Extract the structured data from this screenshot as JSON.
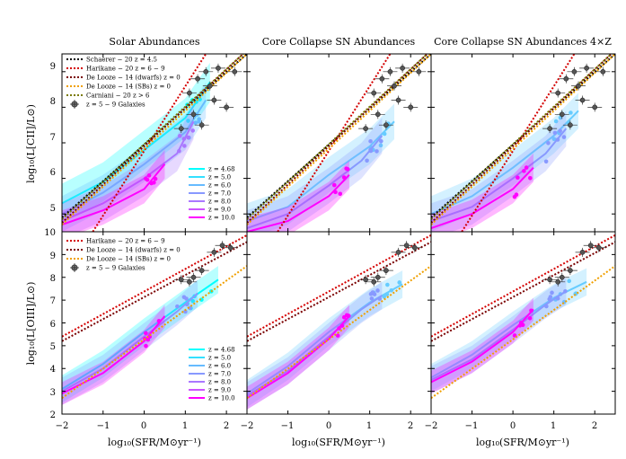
{
  "figure": {
    "column_titles": [
      "Solar Abundances",
      "Core Collapse SN Abundances",
      "Core Collapse SN Abundances 4×Z"
    ],
    "xlabel": "log₁₀(SFR/M⊙yr⁻¹)",
    "row_ylabels": [
      "log₁₀(L[CII]/L⊙)",
      "log₁₀(L[OIII]/L⊙)"
    ],
    "x_ticks": [
      "−2",
      "−1",
      "0",
      "1",
      "2"
    ],
    "top_y_ticks": [
      "5",
      "6",
      "7",
      "8",
      "9"
    ],
    "bottom_y_ticks": [
      "2",
      "3",
      "4",
      "5",
      "6",
      "7",
      "8",
      "9",
      "10"
    ]
  },
  "legend_top": [
    {
      "label": "Schaerer − 20 z = 4.5",
      "color": "#000000"
    },
    {
      "label": "Harikane − 20 z = 6 − 9",
      "color": "#d40000"
    },
    {
      "label": "De Looze − 14 (dwarfs) z = 0",
      "color": "#7a0000"
    },
    {
      "label": "De Looze − 14 (SBs) z = 0",
      "color": "#f0a000"
    },
    {
      "label": "Carniani − 20 z > 6",
      "color": "#7a7a00"
    },
    {
      "label": "z = 5 − 9 Galaxies",
      "color": "#555555"
    }
  ],
  "legend_bottom": [
    {
      "label": "Harikane − 20 z = 6 − 9",
      "color": "#d40000"
    },
    {
      "label": "De Looze − 14 (dwarfs) z = 0",
      "color": "#7a0000"
    },
    {
      "label": "De Looze − 14 (SBs) z = 0",
      "color": "#f0a000"
    },
    {
      "label": "z = 5 − 9 Galaxies",
      "color": "#555555"
    }
  ],
  "legend_redshift": [
    {
      "label": "z = 4.68",
      "color": "#00ffff"
    },
    {
      "label": "z = 5.0",
      "color": "#33e0ff"
    },
    {
      "label": "z = 6.0",
      "color": "#66bbff"
    },
    {
      "label": "z = 7.0",
      "color": "#8899ff"
    },
    {
      "label": "z = 8.0",
      "color": "#aa77ff"
    },
    {
      "label": "z = 9.0",
      "color": "#cc55ff"
    },
    {
      "label": "z = 10.0",
      "color": "#ff00ff"
    }
  ],
  "chart_data": [
    {
      "type": "line",
      "panel": "top-left",
      "xlim": [
        -2,
        2.5
      ],
      "ylim": [
        4.5,
        9.5
      ],
      "relations": [
        {
          "name": "Schaerer − 20 z = 4.5",
          "color": "#000000",
          "x": [
            -2,
            2.5
          ],
          "y": [
            4.9,
            9.5
          ]
        },
        {
          "name": "Harikane − 20 z = 6 − 9",
          "color": "#d40000",
          "x": [
            -1.25,
            1.5
          ],
          "y": [
            4.5,
            9.5
          ]
        },
        {
          "name": "De Looze − 14 (dwarfs) z = 0",
          "color": "#7a0000",
          "x": [
            -2,
            2.5
          ],
          "y": [
            4.75,
            9.6
          ]
        },
        {
          "name": "De Looze − 14 (SBs) z = 0",
          "color": "#f0a000",
          "x": [
            -2,
            2.5
          ],
          "y": [
            4.7,
            9.5
          ]
        },
        {
          "name": "Carniani − 20 z > 6",
          "color": "#7a7a00",
          "x": [
            -2,
            2.5
          ],
          "y": [
            4.85,
            9.6
          ]
        }
      ],
      "simulation": [
        {
          "z": "4.68",
          "color": "#00ffff",
          "x": [
            -2,
            -1,
            0,
            1,
            1.6
          ],
          "y": [
            5.3,
            5.9,
            6.8,
            7.7,
            8.7
          ],
          "spread": 0.55
        },
        {
          "z": "6.0",
          "color": "#66bbff",
          "x": [
            -2,
            -1,
            0,
            1,
            1.5
          ],
          "y": [
            5.0,
            5.6,
            6.4,
            7.3,
            8.2
          ],
          "spread": 0.5
        },
        {
          "z": "8.0",
          "color": "#aa77ff",
          "x": [
            -2,
            -1,
            0,
            0.8,
            1.2
          ],
          "y": [
            4.8,
            5.3,
            6.0,
            6.7,
            7.6
          ],
          "spread": 0.5
        },
        {
          "z": "10.0",
          "color": "#ff00ff",
          "x": [
            -2,
            -1,
            0,
            0.5
          ],
          "y": [
            4.7,
            5.1,
            5.7,
            6.4
          ],
          "spread": 0.4
        }
      ]
    },
    {
      "type": "line",
      "panel": "top-middle",
      "xlim": [
        -2,
        2.5
      ],
      "ylim": [
        4.5,
        9.5
      ],
      "relations": [
        {
          "name": "Schaerer − 20 z = 4.5",
          "color": "#000000",
          "x": [
            -2,
            2.5
          ],
          "y": [
            4.9,
            9.5
          ]
        },
        {
          "name": "Harikane − 20 z = 6 − 9",
          "color": "#d40000",
          "x": [
            -1.25,
            1.5
          ],
          "y": [
            4.5,
            9.5
          ]
        },
        {
          "name": "De Looze − 14 (dwarfs) z = 0",
          "color": "#7a0000",
          "x": [
            -2,
            2.5
          ],
          "y": [
            4.75,
            9.6
          ]
        },
        {
          "name": "De Looze − 14 (SBs) z = 0",
          "color": "#f0a000",
          "x": [
            -2,
            2.5
          ],
          "y": [
            4.7,
            9.5
          ]
        },
        {
          "name": "Carniani − 20 z > 6",
          "color": "#7a7a00",
          "x": [
            -2,
            2.5
          ],
          "y": [
            4.85,
            9.6
          ]
        }
      ],
      "simulation": [
        {
          "z": "4.68",
          "color": "#66ccff",
          "x": [
            -2,
            -1,
            0,
            1,
            1.6
          ],
          "y": [
            4.8,
            5.2,
            6.1,
            6.9,
            7.6
          ],
          "spread": 0.5
        },
        {
          "z": "7.0",
          "color": "#8899ff",
          "x": [
            -2,
            -1,
            0,
            0.8,
            1.3
          ],
          "y": [
            4.6,
            5.0,
            5.8,
            6.5,
            7.2
          ],
          "spread": 0.5
        },
        {
          "z": "10.0",
          "color": "#ff00ff",
          "x": [
            -2,
            -1,
            0,
            0.5
          ],
          "y": [
            4.5,
            4.8,
            5.5,
            6.1
          ],
          "spread": 0.4
        }
      ]
    },
    {
      "type": "line",
      "panel": "top-right",
      "xlim": [
        -2,
        2.5
      ],
      "ylim": [
        4.5,
        9.5
      ],
      "relations": [
        {
          "name": "Schaerer − 20 z = 4.5",
          "color": "#000000",
          "x": [
            -2,
            2.5
          ],
          "y": [
            4.9,
            9.5
          ]
        },
        {
          "name": "Harikane − 20 z = 6 − 9",
          "color": "#d40000",
          "x": [
            -1.25,
            1.5
          ],
          "y": [
            4.5,
            9.5
          ]
        },
        {
          "name": "De Looze − 14 (dwarfs) z = 0",
          "color": "#7a0000",
          "x": [
            -2,
            2.5
          ],
          "y": [
            4.75,
            9.6
          ]
        },
        {
          "name": "De Looze − 14 (SBs) z = 0",
          "color": "#f0a000",
          "x": [
            -2,
            2.5
          ],
          "y": [
            4.7,
            9.5
          ]
        },
        {
          "name": "Carniani − 20 z > 6",
          "color": "#7a7a00",
          "x": [
            -2,
            2.5
          ],
          "y": [
            4.85,
            9.6
          ]
        }
      ],
      "simulation": [
        {
          "z": "4.68",
          "color": "#66ccff",
          "x": [
            -2,
            -1,
            0,
            1,
            1.6
          ],
          "y": [
            5.0,
            5.5,
            6.3,
            7.2,
            7.9
          ],
          "spread": 0.5
        },
        {
          "z": "7.0",
          "color": "#8899ff",
          "x": [
            -2,
            -1,
            0,
            0.8,
            1.3
          ],
          "y": [
            4.8,
            5.2,
            6.0,
            6.7,
            7.4
          ],
          "spread": 0.5
        },
        {
          "z": "10.0",
          "color": "#ff00ff",
          "x": [
            -2,
            -1,
            0,
            0.5
          ],
          "y": [
            4.6,
            5.0,
            5.7,
            6.3
          ],
          "spread": 0.4
        }
      ]
    },
    {
      "type": "line",
      "panel": "bottom-left",
      "xlim": [
        -2,
        2.5
      ],
      "ylim": [
        2,
        10
      ],
      "relations": [
        {
          "name": "Harikane − 20 z = 6 − 9",
          "color": "#d40000",
          "x": [
            -2,
            2.5
          ],
          "y": [
            5.4,
            9.85
          ]
        },
        {
          "name": "De Looze − 14 (dwarfs) z = 0",
          "color": "#7a0000",
          "x": [
            -2,
            2.5
          ],
          "y": [
            5.2,
            9.55
          ]
        },
        {
          "name": "De Looze − 14 (SBs) z = 0",
          "color": "#f0a000",
          "x": [
            -2,
            2.5
          ],
          "y": [
            2.7,
            8.5
          ]
        }
      ],
      "simulation": [
        {
          "z": "4.68",
          "color": "#00ffff",
          "x": [
            -2,
            -1,
            0,
            1,
            1.8
          ],
          "y": [
            3.1,
            4.2,
            5.6,
            6.9,
            7.9
          ],
          "spread": 0.6
        },
        {
          "z": "7.0",
          "color": "#8899ff",
          "x": [
            -2,
            -1,
            0,
            0.8,
            1.3
          ],
          "y": [
            3.0,
            4.0,
            5.4,
            6.5,
            7.3
          ],
          "spread": 0.6
        },
        {
          "z": "10.0",
          "color": "#ff00ff",
          "x": [
            -2,
            -1,
            0,
            0.5
          ],
          "y": [
            2.9,
            3.8,
            5.2,
            6.3
          ],
          "spread": 0.5
        }
      ]
    },
    {
      "type": "line",
      "panel": "bottom-middle",
      "xlim": [
        -2,
        2.5
      ],
      "ylim": [
        2,
        10
      ],
      "relations": [
        {
          "name": "Harikane − 20 z = 6 − 9",
          "color": "#d40000",
          "x": [
            -2,
            2.5
          ],
          "y": [
            5.4,
            9.85
          ]
        },
        {
          "name": "De Looze − 14 (dwarfs) z = 0",
          "color": "#7a0000",
          "x": [
            -2,
            2.5
          ],
          "y": [
            5.2,
            9.55
          ]
        },
        {
          "name": "De Looze − 14 (SBs) z = 0",
          "color": "#f0a000",
          "x": [
            -2,
            2.5
          ],
          "y": [
            2.7,
            8.5
          ]
        }
      ],
      "simulation": [
        {
          "z": "4.68",
          "color": "#66ccff",
          "x": [
            -2,
            -1,
            0,
            1,
            1.8
          ],
          "y": [
            2.9,
            4.1,
            5.6,
            6.9,
            7.7
          ],
          "spread": 0.6
        },
        {
          "z": "7.0",
          "color": "#8899ff",
          "x": [
            -2,
            -1,
            0,
            0.8,
            1.3
          ],
          "y": [
            2.8,
            3.9,
            5.4,
            6.6,
            7.2
          ],
          "spread": 0.6
        },
        {
          "z": "10.0",
          "color": "#ff00ff",
          "x": [
            -2,
            -1,
            0,
            0.5
          ],
          "y": [
            2.7,
            3.8,
            5.3,
            6.3
          ],
          "spread": 0.5
        }
      ]
    },
    {
      "type": "line",
      "panel": "bottom-right",
      "xlim": [
        -2,
        2.5
      ],
      "ylim": [
        2,
        10
      ],
      "relations": [
        {
          "name": "Harikane − 20 z = 6 − 9",
          "color": "#d40000",
          "x": [
            -2,
            2.5
          ],
          "y": [
            5.4,
            9.85
          ]
        },
        {
          "name": "De Looze − 14 (dwarfs) z = 0",
          "color": "#7a0000",
          "x": [
            -2,
            2.5
          ],
          "y": [
            5.2,
            9.55
          ]
        },
        {
          "name": "De Looze − 14 (SBs) z = 0",
          "color": "#f0a000",
          "x": [
            -2,
            2.5
          ],
          "y": [
            2.7,
            8.5
          ]
        }
      ],
      "simulation": [
        {
          "z": "4.68",
          "color": "#66ccff",
          "x": [
            -2,
            -1,
            0,
            1,
            1.8
          ],
          "y": [
            3.6,
            4.6,
            5.9,
            7.1,
            7.8
          ],
          "spread": 0.6
        },
        {
          "z": "7.0",
          "color": "#8899ff",
          "x": [
            -2,
            -1,
            0,
            0.8,
            1.3
          ],
          "y": [
            3.5,
            4.4,
            5.7,
            6.8,
            7.4
          ],
          "spread": 0.6
        },
        {
          "z": "10.0",
          "color": "#ff00ff",
          "x": [
            -2,
            -1,
            0,
            0.5
          ],
          "y": [
            3.4,
            4.3,
            5.6,
            6.6
          ],
          "spread": 0.5
        }
      ]
    }
  ]
}
